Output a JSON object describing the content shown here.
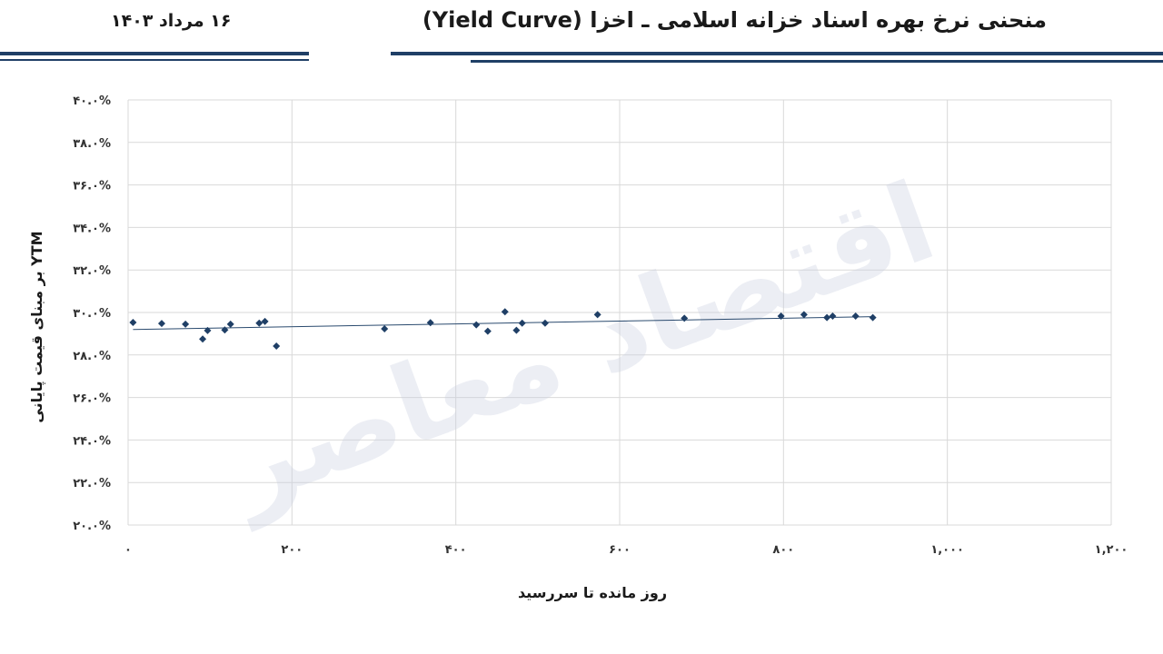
{
  "header": {
    "title": "منحنی نرخ بهره اسناد خزانه اسلامی ـ اخزا (Yield Curve)",
    "date": "۱۶ مرداد ۱۴۰۳"
  },
  "watermark": "اقتصاد معاصر",
  "colors": {
    "rule": "#1f3f66",
    "points": "#1f3f66",
    "trend": "#2a4a6e",
    "grid": "#d9d9d9"
  },
  "chart_data": {
    "type": "scatter",
    "xlabel": "روز مانده تا سررسید",
    "ylabel": "YTM بر مبنای قیمت پایانی",
    "xlim": [
      0,
      1200
    ],
    "ylim": [
      0.2,
      0.4
    ],
    "x_ticks": [
      0,
      200,
      400,
      600,
      800,
      1000,
      1200
    ],
    "x_tick_labels": [
      "۰",
      "۲۰۰",
      "۴۰۰",
      "۶۰۰",
      "۸۰۰",
      "۱,۰۰۰",
      "۱,۲۰۰"
    ],
    "y_ticks": [
      0.2,
      0.22,
      0.24,
      0.26,
      0.28,
      0.3,
      0.32,
      0.34,
      0.36,
      0.38,
      0.4
    ],
    "y_tick_labels": [
      "۲۰.۰%",
      "۲۲.۰%",
      "۲۴.۰%",
      "۲۶.۰%",
      "۲۸.۰%",
      "۳۰.۰%",
      "۳۲.۰%",
      "۳۴.۰%",
      "۳۶.۰%",
      "۳۸.۰%",
      "۴۰.۰%"
    ],
    "grid": true,
    "points": [
      {
        "x": 6,
        "y": 0.2953
      },
      {
        "x": 41,
        "y": 0.2948
      },
      {
        "x": 70,
        "y": 0.2945
      },
      {
        "x": 91,
        "y": 0.2875
      },
      {
        "x": 97,
        "y": 0.2915
      },
      {
        "x": 118,
        "y": 0.2918
      },
      {
        "x": 125,
        "y": 0.2945
      },
      {
        "x": 160,
        "y": 0.295
      },
      {
        "x": 167,
        "y": 0.2958
      },
      {
        "x": 181,
        "y": 0.2842
      },
      {
        "x": 313,
        "y": 0.2923
      },
      {
        "x": 369,
        "y": 0.2952
      },
      {
        "x": 425,
        "y": 0.2942
      },
      {
        "x": 439,
        "y": 0.2912
      },
      {
        "x": 460,
        "y": 0.3003
      },
      {
        "x": 474,
        "y": 0.2916
      },
      {
        "x": 481,
        "y": 0.295
      },
      {
        "x": 509,
        "y": 0.295
      },
      {
        "x": 573,
        "y": 0.299
      },
      {
        "x": 679,
        "y": 0.2973
      },
      {
        "x": 797,
        "y": 0.2983
      },
      {
        "x": 825,
        "y": 0.299
      },
      {
        "x": 853,
        "y": 0.2976
      },
      {
        "x": 860,
        "y": 0.2983
      },
      {
        "x": 888,
        "y": 0.2983
      },
      {
        "x": 909,
        "y": 0.2976
      }
    ],
    "trendline": {
      "x": [
        6,
        909
      ],
      "y": [
        0.292,
        0.298
      ]
    }
  }
}
